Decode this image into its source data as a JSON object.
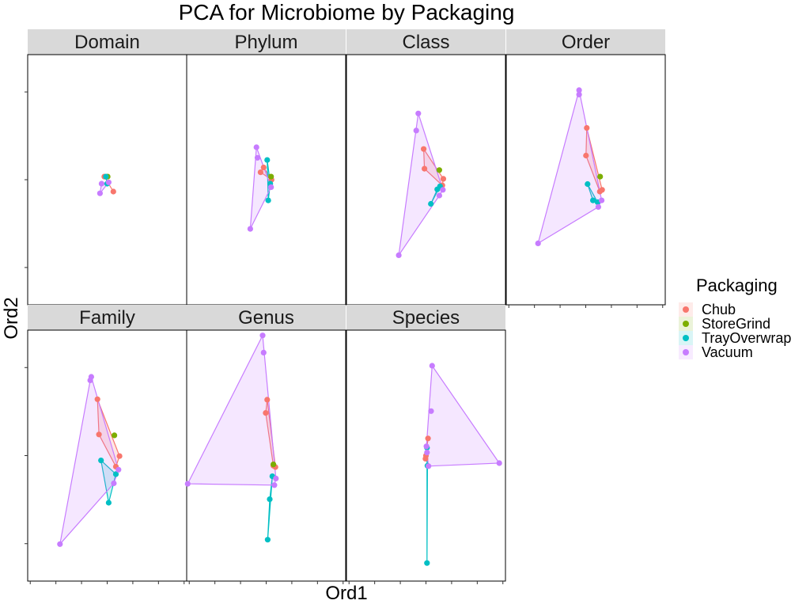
{
  "chart_data": {
    "type": "scatter",
    "title": "PCA for Microbiome by Packaging",
    "xlabel": "Ord1",
    "ylabel": "Ord2",
    "xlim": [
      -3.1,
      3.1
    ],
    "ylim": [
      -2.85,
      2.85
    ],
    "tick_labels_shown": false,
    "grid": false,
    "hulls": true,
    "legend_title": "Packaging",
    "legend_position": "right",
    "colors": {
      "Chub": "#F8766D",
      "StoreGrind": "#7CAE00",
      "TrayOverwrap": "#00BFC4",
      "Vacuum": "#C77CFF"
    },
    "series": [
      {
        "name": "Chub",
        "color": "#F8766D"
      },
      {
        "name": "StoreGrind",
        "color": "#7CAE00"
      },
      {
        "name": "TrayOverwrap",
        "color": "#00BFC4"
      },
      {
        "name": "Vacuum",
        "color": "#C77CFF"
      }
    ],
    "facets": [
      {
        "title": "Domain",
        "points": [
          {
            "group": "Chub",
            "x": -0.11,
            "y": 0.07
          },
          {
            "group": "Chub",
            "x": 0.24,
            "y": -0.27
          },
          {
            "group": "StoreGrind",
            "x": 0.02,
            "y": 0.07
          },
          {
            "group": "TrayOverwrap",
            "x": -0.05,
            "y": 0.07
          },
          {
            "group": "TrayOverwrap",
            "x": 0.0,
            "y": -0.09
          },
          {
            "group": "Vacuum",
            "x": -0.28,
            "y": -0.31
          },
          {
            "group": "Vacuum",
            "x": -0.22,
            "y": -0.09
          },
          {
            "group": "Vacuum",
            "x": 0.06,
            "y": -0.06
          }
        ]
      },
      {
        "title": "Phylum",
        "points": [
          {
            "group": "Chub",
            "x": -0.1,
            "y": 0.28
          },
          {
            "group": "Chub",
            "x": -0.22,
            "y": 0.17
          },
          {
            "group": "Chub",
            "x": 0.21,
            "y": 0.0
          },
          {
            "group": "StoreGrind",
            "x": 0.19,
            "y": 0.07
          },
          {
            "group": "TrayOverwrap",
            "x": 0.04,
            "y": 0.45
          },
          {
            "group": "TrayOverwrap",
            "x": 0.08,
            "y": -0.47
          },
          {
            "group": "TrayOverwrap",
            "x": 0.16,
            "y": -0.09
          },
          {
            "group": "Vacuum",
            "x": -0.38,
            "y": 0.74
          },
          {
            "group": "Vacuum",
            "x": -0.34,
            "y": 0.5
          },
          {
            "group": "Vacuum",
            "x": -0.62,
            "y": -1.12
          },
          {
            "group": "Vacuum",
            "x": 0.19,
            "y": -0.17
          }
        ]
      },
      {
        "title": "Class",
        "points": [
          {
            "group": "Chub",
            "x": -0.09,
            "y": 0.7
          },
          {
            "group": "Chub",
            "x": -0.06,
            "y": 0.25
          },
          {
            "group": "Chub",
            "x": 0.68,
            "y": 0.02
          },
          {
            "group": "Chub",
            "x": 0.64,
            "y": -0.13
          },
          {
            "group": "StoreGrind",
            "x": 0.52,
            "y": 0.22
          },
          {
            "group": "TrayOverwrap",
            "x": 0.19,
            "y": -0.55
          },
          {
            "group": "TrayOverwrap",
            "x": 0.44,
            "y": -0.22
          },
          {
            "group": "TrayOverwrap",
            "x": 0.55,
            "y": -0.15
          },
          {
            "group": "Vacuum",
            "x": -0.3,
            "y": 1.51
          },
          {
            "group": "Vacuum",
            "x": -0.38,
            "y": 1.12
          },
          {
            "group": "Vacuum",
            "x": -1.06,
            "y": -1.72
          },
          {
            "group": "Vacuum",
            "x": 0.66,
            "y": -0.23
          },
          {
            "group": "Vacuum",
            "x": 0.52,
            "y": -0.36
          }
        ]
      },
      {
        "title": "Order",
        "points": [
          {
            "group": "Chub",
            "x": 0.04,
            "y": 1.18
          },
          {
            "group": "Chub",
            "x": 0.01,
            "y": 0.55
          },
          {
            "group": "Chub",
            "x": 0.55,
            "y": -0.27
          },
          {
            "group": "Chub",
            "x": 0.64,
            "y": -0.23
          },
          {
            "group": "StoreGrind",
            "x": 0.56,
            "y": 0.07
          },
          {
            "group": "TrayOverwrap",
            "x": 0.07,
            "y": -0.1
          },
          {
            "group": "TrayOverwrap",
            "x": 0.28,
            "y": -0.47
          },
          {
            "group": "TrayOverwrap",
            "x": 0.46,
            "y": -0.51
          },
          {
            "group": "Vacuum",
            "x": -0.26,
            "y": 2.04
          },
          {
            "group": "Vacuum",
            "x": -0.26,
            "y": 1.94
          },
          {
            "group": "Vacuum",
            "x": -1.86,
            "y": -1.45
          },
          {
            "group": "Vacuum",
            "x": 0.62,
            "y": -0.47
          },
          {
            "group": "Vacuum",
            "x": 0.49,
            "y": -0.62
          }
        ]
      },
      {
        "title": "Family",
        "points": [
          {
            "group": "Chub",
            "x": -0.38,
            "y": 1.28
          },
          {
            "group": "Chub",
            "x": -0.32,
            "y": 0.48
          },
          {
            "group": "Chub",
            "x": 0.48,
            "y": -0.01
          },
          {
            "group": "Chub",
            "x": 0.34,
            "y": -0.25
          },
          {
            "group": "StoreGrind",
            "x": 0.28,
            "y": 0.46
          },
          {
            "group": "TrayOverwrap",
            "x": -0.24,
            "y": -0.11
          },
          {
            "group": "TrayOverwrap",
            "x": 0.06,
            "y": -1.07
          },
          {
            "group": "TrayOverwrap",
            "x": 0.34,
            "y": -0.42
          },
          {
            "group": "Vacuum",
            "x": -0.62,
            "y": 1.79
          },
          {
            "group": "Vacuum",
            "x": -0.66,
            "y": 1.71
          },
          {
            "group": "Vacuum",
            "x": -1.84,
            "y": -2.01
          },
          {
            "group": "Vacuum",
            "x": 0.44,
            "y": -0.32
          },
          {
            "group": "Vacuum",
            "x": 0.26,
            "y": -0.63
          }
        ]
      },
      {
        "title": "Genus",
        "points": [
          {
            "group": "Chub",
            "x": 0.04,
            "y": 1.27
          },
          {
            "group": "Chub",
            "x": -0.02,
            "y": 0.97
          },
          {
            "group": "Chub",
            "x": 0.36,
            "y": -0.26
          },
          {
            "group": "Chub",
            "x": 0.28,
            "y": -0.23
          },
          {
            "group": "StoreGrind",
            "x": 0.28,
            "y": -0.2
          },
          {
            "group": "TrayOverwrap",
            "x": 0.24,
            "y": -0.47
          },
          {
            "group": "TrayOverwrap",
            "x": 0.14,
            "y": -0.99
          },
          {
            "group": "TrayOverwrap",
            "x": 0.06,
            "y": -1.91
          },
          {
            "group": "Vacuum",
            "x": -0.14,
            "y": 2.73
          },
          {
            "group": "Vacuum",
            "x": -0.1,
            "y": 2.34
          },
          {
            "group": "Vacuum",
            "x": -3.06,
            "y": -0.64
          },
          {
            "group": "Vacuum",
            "x": 0.32,
            "y": -0.67
          },
          {
            "group": "Vacuum",
            "x": 0.38,
            "y": -0.52
          }
        ]
      },
      {
        "title": "Species",
        "points": [
          {
            "group": "Chub",
            "x": 0.08,
            "y": 0.39
          },
          {
            "group": "Chub",
            "x": 0.0,
            "y": 0.0
          },
          {
            "group": "Chub",
            "x": -0.02,
            "y": -0.07
          },
          {
            "group": "TrayOverwrap",
            "x": 0.04,
            "y": 0.18
          },
          {
            "group": "TrayOverwrap",
            "x": 0.06,
            "y": -0.23
          },
          {
            "group": "TrayOverwrap",
            "x": 0.04,
            "y": -2.44
          },
          {
            "group": "Vacuum",
            "x": 0.24,
            "y": 2.04
          },
          {
            "group": "Vacuum",
            "x": 0.2,
            "y": 1.01
          },
          {
            "group": "Vacuum",
            "x": 0.02,
            "y": 0.21
          },
          {
            "group": "Vacuum",
            "x": 0.04,
            "y": 0.07
          },
          {
            "group": "Vacuum",
            "x": 0.1,
            "y": -0.24
          },
          {
            "group": "Vacuum",
            "x": 2.86,
            "y": -0.17
          }
        ]
      }
    ]
  }
}
